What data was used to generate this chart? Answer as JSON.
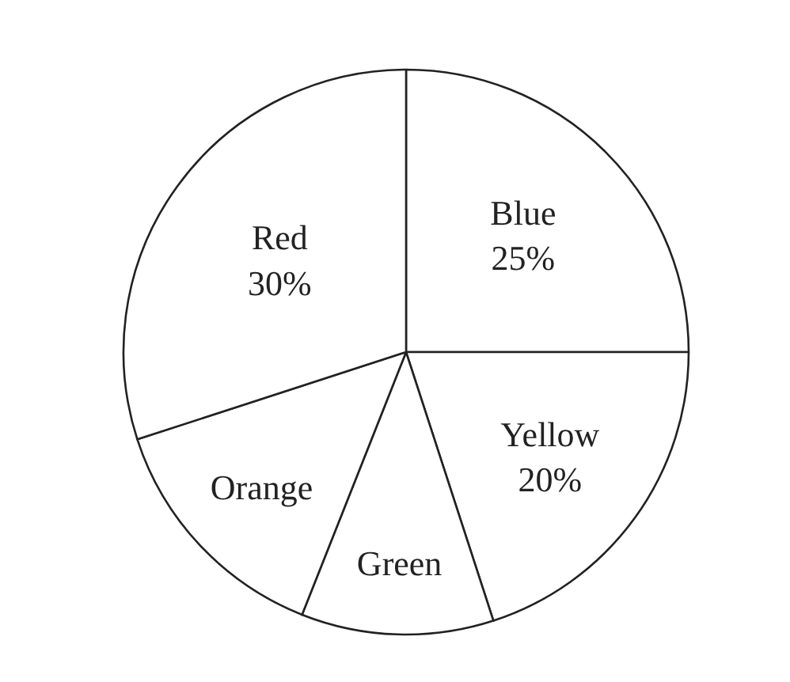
{
  "chart_data": {
    "type": "pie",
    "categories": [
      "Blue",
      "Yellow",
      "Green",
      "Orange",
      "Red"
    ],
    "values": [
      25,
      20,
      11,
      14,
      30
    ],
    "value_labels": [
      "25%",
      "20%",
      null,
      null,
      "30%"
    ],
    "colors": [
      "#ffffff",
      "#ffffff",
      "#ffffff",
      "#ffffff",
      "#ffffff"
    ],
    "legend": false
  }
}
